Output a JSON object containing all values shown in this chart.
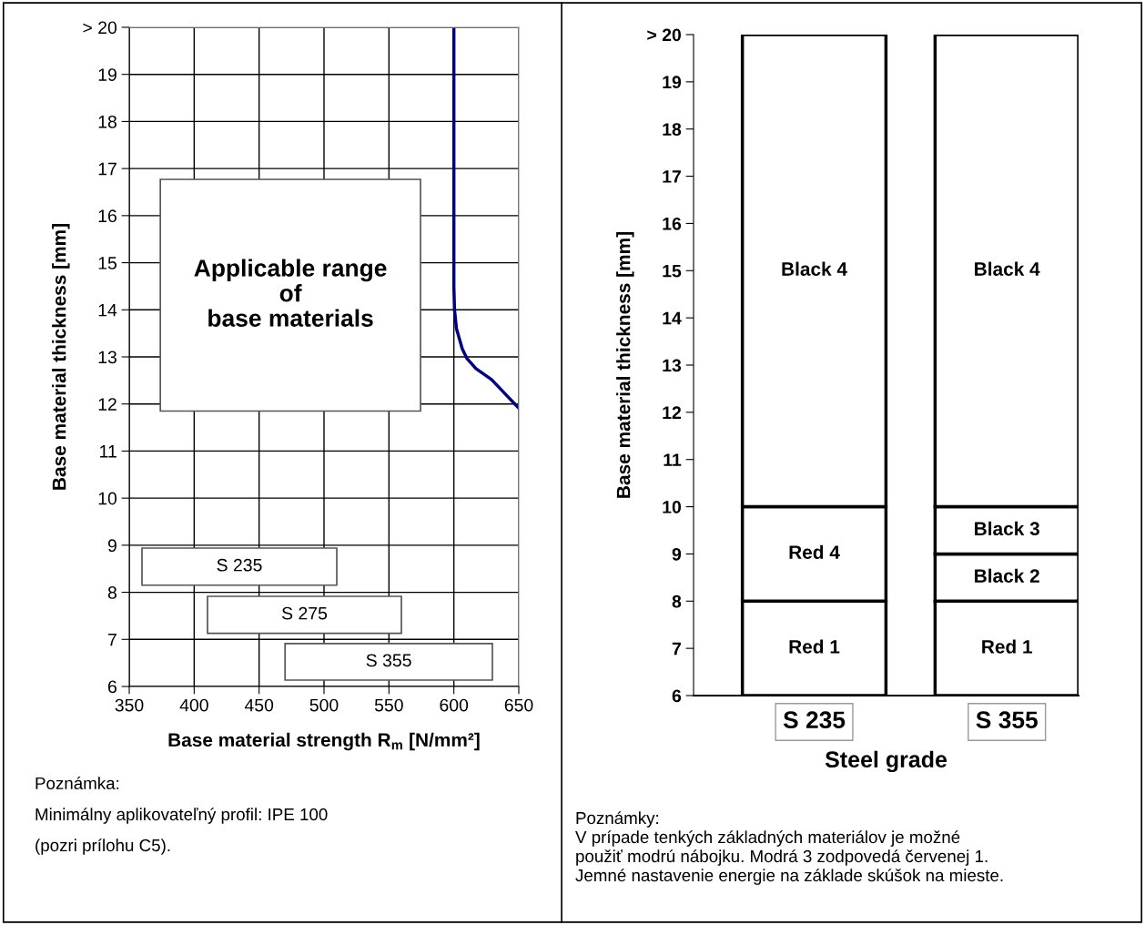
{
  "chart_data": [
    {
      "type": "line",
      "xlabel": "Base material strength R$_{m}$ [N/mm²]",
      "ylabel": "Base material thickness [mm]",
      "x": [
        600,
        600,
        600.5,
        602,
        606.5,
        610,
        617,
        629,
        640,
        650
      ],
      "series": [
        {
          "color": "#000080",
          "values": [
            20,
            14.5,
            14,
            13.6,
            13.17,
            12.97,
            12.75,
            12.52,
            12.2,
            11.91
          ]
        }
      ],
      "xlim": [
        350,
        650
      ],
      "xticks": [
        350,
        400,
        450,
        500,
        550,
        600,
        650
      ],
      "ylim": [
        6,
        20
      ],
      "yticks": [
        6,
        7,
        8,
        9,
        10,
        11,
        12,
        13,
        14,
        15,
        16,
        17,
        18,
        19,
        {
          "value": 20,
          "label": "> 20"
        }
      ],
      "grid": true,
      "marker": "none",
      "line_style": "solid",
      "annotations": [
        "Applicable range\nof\nbase materials",
        "S 235",
        "S 275",
        "S 355",
        "Poznámka:",
        "Minimálny aplikovateľný profil: IPE 100",
        "(pozri prílohu C5)."
      ]
    },
    {
      "type": "bar",
      "categories": [
        "S 235",
        "S 355"
      ],
      "xlabel": "Steel grade",
      "ylabel": "Base material thickness [mm]",
      "series": [
        {
          "color": "#ffffff",
          "base": [
            6,
            6
          ],
          "values": [
            2,
            2
          ],
          "value_labels": [
            "Red 1",
            "Red 1"
          ]
        },
        {
          "color": "#ffffff",
          "base": [
            8,
            8
          ],
          "values": [
            2,
            1
          ],
          "value_labels": [
            "Red 4",
            "Black 2"
          ]
        },
        {
          "color": "#ffffff",
          "base": [
            null,
            9
          ],
          "values": [
            null,
            1
          ],
          "value_labels": [
            null,
            "Black 3"
          ]
        },
        {
          "color": "#ffffff",
          "base": [
            10,
            10
          ],
          "values": [
            10,
            10
          ],
          "value_labels": [
            "Black 4",
            "Black 4"
          ]
        }
      ],
      "ylim": [
        6,
        20
      ],
      "yticks": [
        6,
        7,
        8,
        9,
        10,
        11,
        12,
        13,
        14,
        15,
        16,
        17,
        18,
        19,
        {
          "value": 20,
          "label": "> 20"
        }
      ],
      "grid": false,
      "annotations": [
        "Poznámky:",
        "V prípade tenkých základných materiálov je možné",
        "použiť modrú nábojku. Modrá 3 zodpovedá červenej 1.",
        "Jemné nastavenie energie na základe skúšok na mieste."
      ]
    }
  ]
}
